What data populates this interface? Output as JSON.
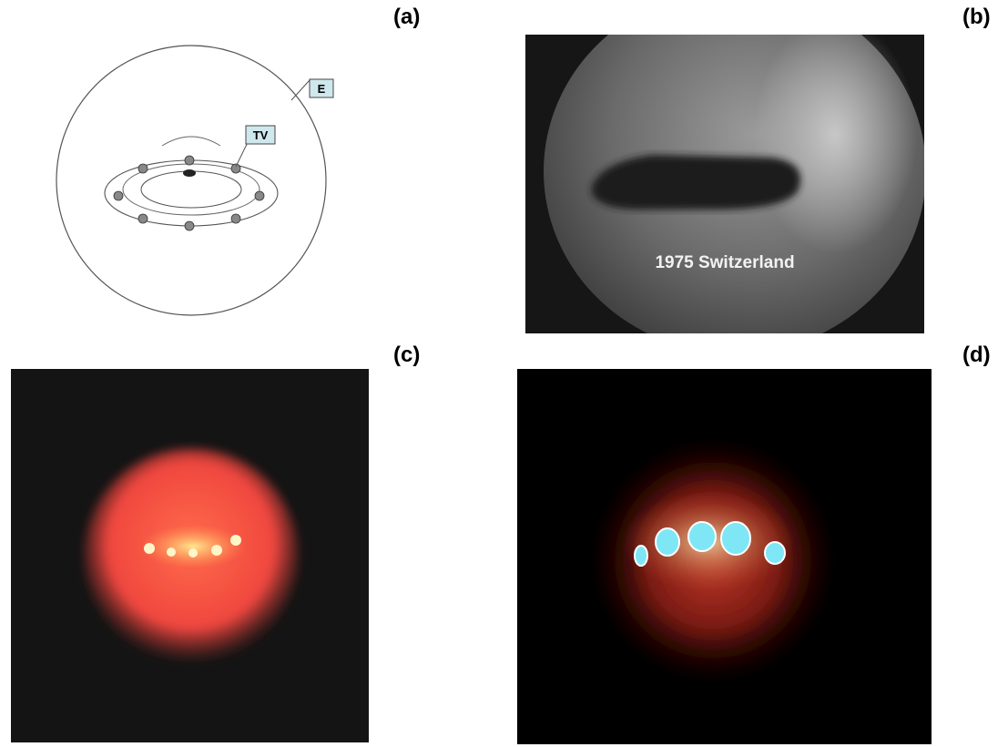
{
  "panels": {
    "a": {
      "label": "(a)",
      "callout_e": "E",
      "callout_tv": "TV",
      "callout_fill": "#cfe8ee"
    },
    "b": {
      "label": "(b)",
      "caption": "1975 Switzerland"
    },
    "c": {
      "label": "(c)",
      "glow_color": "#f0473f"
    },
    "d": {
      "label": "(d)",
      "light_color": "#7fe6f5"
    }
  }
}
